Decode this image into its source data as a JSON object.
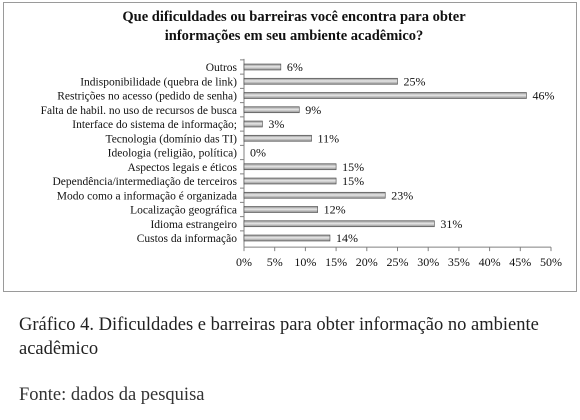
{
  "chart_data": {
    "type": "bar",
    "orientation": "horizontal",
    "title_lines": [
      "Que dificuldades ou barreiras você encontra para obter",
      "informações em seu ambiente acadêmico?"
    ],
    "categories": [
      "Outros",
      "Indisponibilidade (quebra de link)",
      "Restrições no acesso (pedido de senha)",
      "Falta de habil. no uso de recursos de busca",
      "Interface do sistema de informação;",
      "Tecnologia (domínio das TI)",
      "Ideologia (religião, política)",
      "Aspectos legais e éticos",
      "Dependência/intermediação de terceiros",
      "Modo como a informação é organizada",
      "Localização geográfica",
      "Idioma estrangeiro",
      "Custos da informação"
    ],
    "values": [
      6,
      25,
      46,
      9,
      3,
      11,
      0,
      15,
      15,
      23,
      12,
      31,
      14
    ],
    "value_labels": [
      "6%",
      "25%",
      "46%",
      "9%",
      "3%",
      "11%",
      "0%",
      "15%",
      "15%",
      "23%",
      "12%",
      "31%",
      "14%"
    ],
    "xlim": [
      0,
      50
    ],
    "xticks": [
      0,
      5,
      10,
      15,
      20,
      25,
      30,
      35,
      40,
      45,
      50
    ],
    "xtick_labels": [
      "0%",
      "5%",
      "10%",
      "15%",
      "20%",
      "25%",
      "30%",
      "35%",
      "40%",
      "45%",
      "50%"
    ],
    "grid": false,
    "colors": {
      "bar": "#8c8c8c",
      "bar_highlight": "#e8e8e8",
      "bar_edge": "#4a4a4a",
      "axis": "#808080"
    }
  },
  "caption": {
    "label": "Gráfico 4.",
    "text": "Dificuldades e barreiras para obter informação no ambiente acadêmico"
  },
  "source": "Fonte: dados da pesquisa"
}
